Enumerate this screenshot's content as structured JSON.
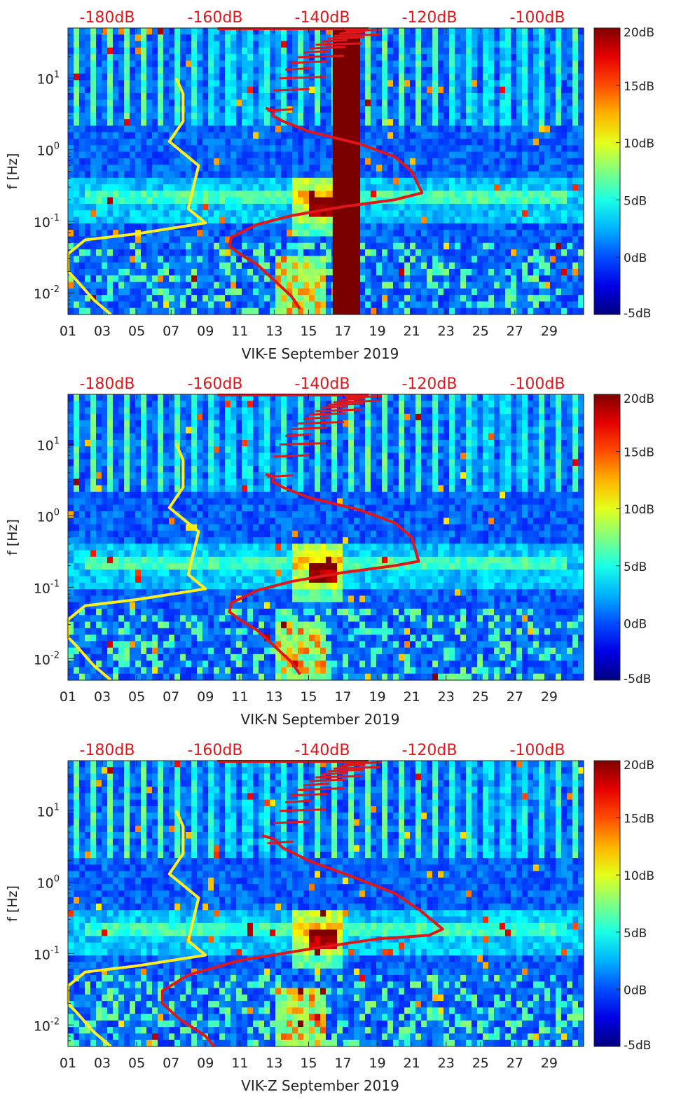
{
  "colors": {
    "yellow_line": "#ffee22",
    "red_line": "#e0161b",
    "top_label": "#e0161b"
  },
  "colormap": {
    "name": "jet",
    "tick_labels": [
      "20dB",
      "15dB",
      "10dB",
      "5dB",
      "0dB",
      "-5dB"
    ],
    "range": [
      -5,
      20
    ]
  },
  "chart_data": [
    {
      "type": "heatmap",
      "title": "",
      "xlabel": "VIK-E September 2019",
      "ylabel": "f [Hz]",
      "x_ticks": [
        "01",
        "03",
        "05",
        "07",
        "09",
        "11",
        "13",
        "15",
        "17",
        "19",
        "21",
        "23",
        "25",
        "27",
        "29"
      ],
      "y_ticks": [
        "10^1",
        "10^0",
        "10^-1",
        "10^-2"
      ],
      "top_axis_labels": [
        "-180dB",
        "-160dB",
        "-140dB",
        "-120dB",
        "-100dB"
      ],
      "xlim": [
        1,
        31
      ],
      "ylim_hz": [
        0.005,
        50
      ],
      "clim_db": [
        -5,
        20
      ],
      "gap_days": [
        16.4,
        18.0
      ],
      "series": [
        {
          "name": "yellow-psd",
          "color": "#ffee22",
          "days": [
            7.3,
            7.7,
            7.7,
            6.9,
            8.6,
            8.0,
            9.0,
            5.0,
            2.0,
            1.0,
            1.0,
            1.5,
            2.5,
            3.5
          ],
          "freq_hz": [
            10.0,
            6.0,
            2.5,
            1.3,
            0.6,
            0.15,
            0.095,
            0.067,
            0.055,
            0.035,
            0.02,
            0.015,
            0.008,
            0.005
          ]
        },
        {
          "name": "red-psd",
          "color": "#e0161b",
          "days": [
            12.5,
            13.0,
            12.9,
            13.5,
            15.0,
            18.0,
            20.0,
            21.0,
            21.6,
            20.0,
            17.0,
            14.0,
            12.0,
            10.5,
            10.4,
            11.0,
            12.0,
            13.0,
            14.0,
            14.5
          ],
          "freq_hz": [
            3.8,
            3.5,
            3.0,
            2.5,
            1.8,
            1.2,
            0.8,
            0.5,
            0.25,
            0.2,
            0.16,
            0.12,
            0.09,
            0.06,
            0.045,
            0.035,
            0.025,
            0.015,
            0.009,
            0.006
          ]
        }
      ]
    },
    {
      "type": "heatmap",
      "title": "",
      "xlabel": "VIK-N September 2019",
      "ylabel": "f [Hz]",
      "x_ticks": [
        "01",
        "03",
        "05",
        "07",
        "09",
        "11",
        "13",
        "15",
        "17",
        "19",
        "21",
        "23",
        "25",
        "27",
        "29"
      ],
      "y_ticks": [
        "10^1",
        "10^0",
        "10^-1",
        "10^-2"
      ],
      "top_axis_labels": [
        "-180dB",
        "-160dB",
        "-140dB",
        "-120dB",
        "-100dB"
      ],
      "xlim": [
        1,
        31
      ],
      "ylim_hz": [
        0.005,
        50
      ],
      "clim_db": [
        -5,
        20
      ],
      "gap_days": null,
      "series": [
        {
          "name": "yellow-psd",
          "color": "#ffee22",
          "days": [
            7.3,
            7.7,
            7.7,
            6.9,
            8.6,
            8.0,
            9.0,
            5.0,
            2.0,
            1.0,
            1.0,
            1.5,
            2.5,
            3.5
          ],
          "freq_hz": [
            10.0,
            6.0,
            2.5,
            1.3,
            0.6,
            0.15,
            0.095,
            0.067,
            0.055,
            0.035,
            0.02,
            0.015,
            0.008,
            0.005
          ]
        },
        {
          "name": "red-psd",
          "color": "#e0161b",
          "days": [
            12.5,
            13.0,
            12.9,
            13.5,
            15.0,
            18.0,
            20.0,
            21.0,
            21.4,
            20.0,
            17.0,
            14.0,
            12.0,
            10.5,
            10.4,
            11.0,
            12.0,
            13.0,
            14.0,
            14.5
          ],
          "freq_hz": [
            3.8,
            3.5,
            3.0,
            2.5,
            1.8,
            1.2,
            0.8,
            0.5,
            0.23,
            0.2,
            0.16,
            0.12,
            0.09,
            0.06,
            0.045,
            0.035,
            0.025,
            0.015,
            0.009,
            0.006
          ]
        }
      ]
    },
    {
      "type": "heatmap",
      "title": "",
      "xlabel": "VIK-Z September 2019",
      "ylabel": "f [Hz]",
      "x_ticks": [
        "01",
        "03",
        "05",
        "07",
        "09",
        "11",
        "13",
        "15",
        "17",
        "19",
        "21",
        "23",
        "25",
        "27",
        "29"
      ],
      "y_ticks": [
        "10^1",
        "10^0",
        "10^-1",
        "10^-2"
      ],
      "top_axis_labels": [
        "-180dB",
        "-160dB",
        "-140dB",
        "-120dB",
        "-100dB"
      ],
      "xlim": [
        1,
        31
      ],
      "ylim_hz": [
        0.005,
        50
      ],
      "clim_db": [
        -5,
        20
      ],
      "gap_days": null,
      "series": [
        {
          "name": "yellow-psd",
          "color": "#ffee22",
          "days": [
            7.3,
            7.7,
            7.7,
            6.9,
            8.6,
            8.0,
            9.0,
            5.0,
            2.0,
            1.0,
            1.0,
            1.5,
            2.5,
            3.5
          ],
          "freq_hz": [
            10.0,
            6.0,
            2.5,
            1.3,
            0.6,
            0.15,
            0.095,
            0.067,
            0.055,
            0.035,
            0.02,
            0.015,
            0.008,
            0.005
          ]
        },
        {
          "name": "red-psd",
          "color": "#e0161b",
          "days": [
            12.3,
            13.0,
            13.5,
            15.0,
            17.5,
            20.0,
            21.5,
            22.8,
            22.0,
            19.0,
            15.5,
            11.0,
            8.0,
            6.5,
            6.5,
            7.5,
            9.0,
            9.5
          ],
          "freq_hz": [
            4.5,
            4.0,
            3.0,
            2.0,
            1.2,
            0.7,
            0.4,
            0.22,
            0.18,
            0.16,
            0.12,
            0.08,
            0.05,
            0.03,
            0.02,
            0.012,
            0.007,
            0.005
          ]
        }
      ]
    }
  ]
}
